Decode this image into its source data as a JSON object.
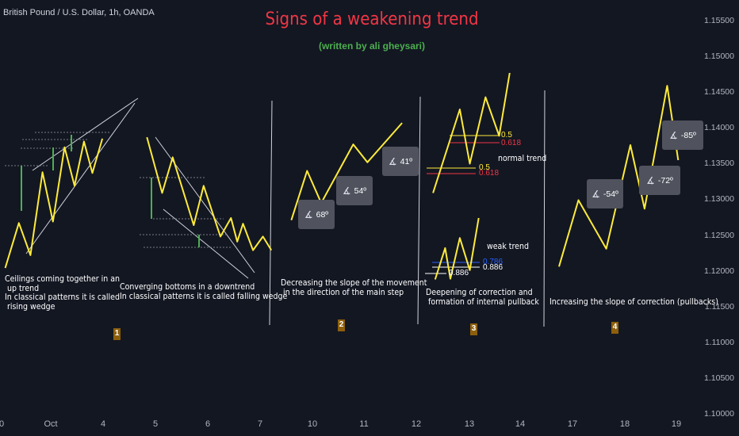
{
  "header": {
    "symbol": "British Pound / U.S. Dollar, 1h, OANDA"
  },
  "title": "Signs of a weakening trend",
  "subtitle": "(written by ali gheysari)",
  "notes": {
    "n1": "Ceilings coming together in an\n up trend\nIn classical patterns it is called\n rising wedge",
    "n2": "Converging bottoms in a downtrend\nIn classical patterns it is called falling wedge",
    "n3": "Decreasing the slope of the movement\n in the direction of the main step",
    "n4": "Deepening of correction and\n formation of internal pullback",
    "n5": "Increasing the slope of correction (pullbacks)"
  },
  "badges": {
    "b1": "1",
    "b2": "2",
    "b3": "3",
    "b4": "4"
  },
  "angles": {
    "a1": "68º",
    "a2": "54º",
    "a3": "41º",
    "a4": "-54º",
    "a5": "-72º",
    "a6": "-85º"
  },
  "angle_icon": "angle-icon",
  "section3": {
    "normal_trend": "normal trend",
    "weak_trend": "weak trend",
    "fib": {
      "f05": "0.5",
      "f0618": "0.618",
      "f05b": "0.5",
      "f0618b": "0.618",
      "f0786": "0.786",
      "f0886": "0.886",
      "f0886b": "0.886"
    }
  },
  "colors": {
    "background": "#131722",
    "price_line": "#ffeb3b",
    "title": "#f23645",
    "subtitle": "#4caf50",
    "measure": "#4caf50",
    "fib_05": "#ffeb3b",
    "fib_0618": "#f23645",
    "fib_0786": "#2962ff",
    "grid_text": "#b2b5be"
  },
  "chart_data": {
    "type": "line",
    "instrument": "British Pound / U.S. Dollar, 1h, OANDA",
    "y_ticks": [
      "1.15500",
      "1.15000",
      "1.14500",
      "1.14000",
      "1.13500",
      "1.13000",
      "1.12500",
      "1.12000",
      "1.11500",
      "1.11000",
      "1.10500",
      "1.10000"
    ],
    "x_ticks": [
      "0",
      "Oct",
      "4",
      "5",
      "6",
      "7",
      "10",
      "11",
      "12",
      "13",
      "14",
      "17",
      "18",
      "19"
    ],
    "ylim": [
      1.097,
      1.158
    ],
    "sketches": [
      {
        "name": "1",
        "points": [
          [
            0,
            1.1205
          ],
          [
            2.6,
            1.1268
          ],
          [
            4.8,
            1.1223
          ],
          [
            7.1,
            1.1339
          ],
          [
            9.1,
            1.127
          ],
          [
            11.3,
            1.1374
          ],
          [
            13.2,
            1.132
          ],
          [
            15,
            1.1382
          ],
          [
            16.6,
            1.1338
          ],
          [
            18.5,
            1.1386
          ]
        ]
      },
      {
        "name": "2",
        "points": [
          [
            27,
            1.1388
          ],
          [
            29.9,
            1.131
          ],
          [
            31.9,
            1.136
          ],
          [
            35.9,
            1.1265
          ],
          [
            37.8,
            1.132
          ],
          [
            41,
            1.1249
          ],
          [
            43,
            1.1275
          ],
          [
            44.2,
            1.1242
          ],
          [
            45.3,
            1.1267
          ],
          [
            47.2,
            1.123
          ],
          [
            49.1,
            1.1249
          ],
          [
            50.7,
            1.123
          ]
        ]
      },
      {
        "name": "3",
        "points": [
          [
            54.5,
            1.1272
          ],
          [
            57.5,
            1.1341
          ],
          [
            60.2,
            1.1296
          ],
          [
            66.3,
            1.1378
          ],
          [
            69,
            1.1353
          ],
          [
            75.6,
            1.1408
          ]
        ]
      },
      {
        "name": "4a",
        "points": [
          [
            81.5,
            1.131
          ],
          [
            86.6,
            1.1427
          ],
          [
            88.5,
            1.1351
          ],
          [
            91.5,
            1.1444
          ],
          [
            94.1,
            1.139
          ],
          [
            96.1,
            1.1478
          ]
        ]
      },
      {
        "name": "4b",
        "points": [
          [
            81.9,
            1.1189
          ],
          [
            83.8,
            1.1233
          ],
          [
            84.8,
            1.119
          ],
          [
            86.6,
            1.1247
          ],
          [
            88.5,
            1.1202
          ],
          [
            90.2,
            1.1275
          ]
        ]
      },
      {
        "name": "5",
        "points": [
          [
            105.5,
            1.1207
          ],
          [
            109.2,
            1.13
          ],
          [
            114.5,
            1.1232
          ],
          [
            119.1,
            1.1377
          ],
          [
            121.8,
            1.1288
          ],
          [
            126.1,
            1.146
          ],
          [
            128.2,
            1.1356
          ]
        ]
      }
    ]
  }
}
